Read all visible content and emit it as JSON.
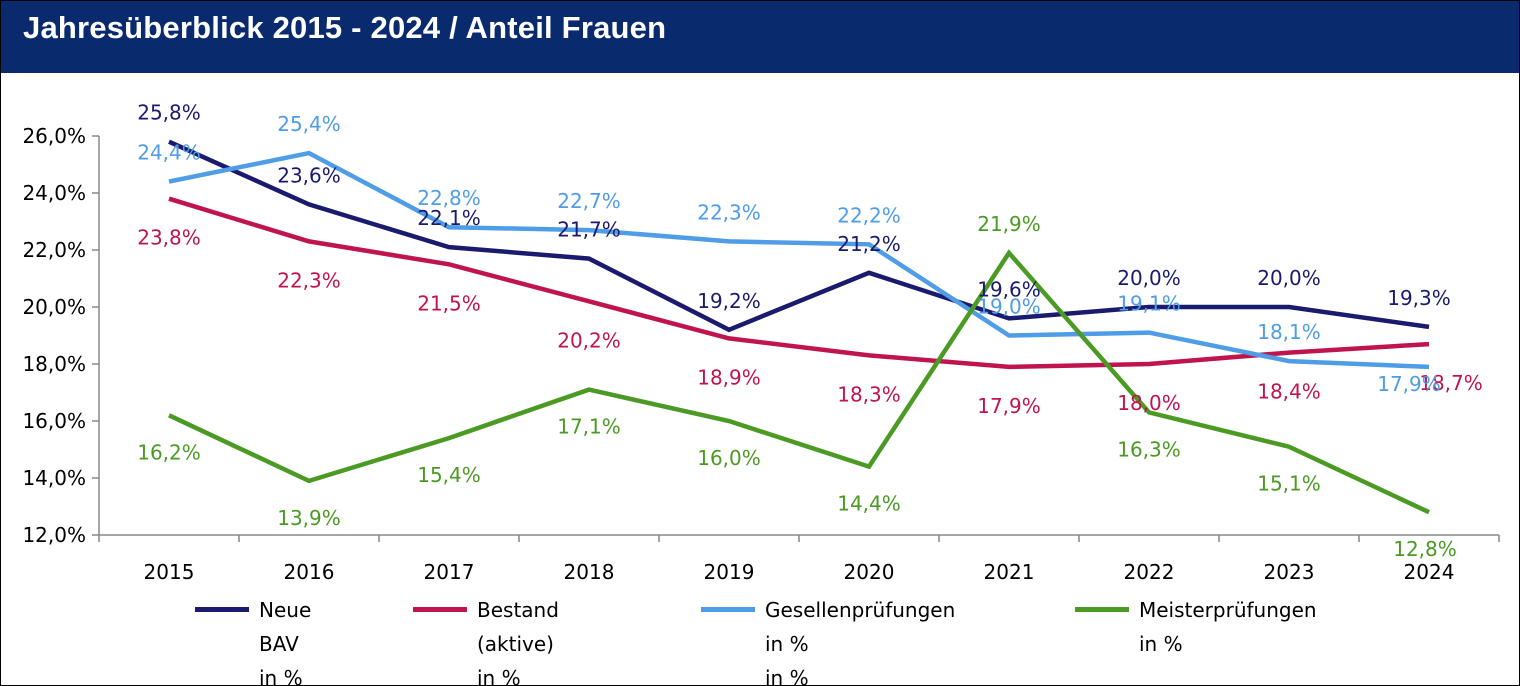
{
  "title": "Jahresüberblick 2015 - 2024 / Anteil Frauen",
  "chart_data": {
    "type": "line",
    "categories": [
      "2015",
      "2016",
      "2017",
      "2018",
      "2019",
      "2020",
      "2021",
      "2022",
      "2023",
      "2024"
    ],
    "ylim": [
      12,
      26
    ],
    "yticks": [
      12,
      14,
      16,
      18,
      20,
      22,
      24,
      26
    ],
    "ytick_labels": [
      "12,0%",
      "14,0%",
      "16,0%",
      "18,0%",
      "20,0%",
      "22,0%",
      "24,0%",
      "26,0%"
    ],
    "grid": false,
    "legend_position": "bottom",
    "series": [
      {
        "name": "Neue BAV in %",
        "legend_label": "Neue BAV\nin %",
        "color": "#1a1a6e",
        "values": [
          25.8,
          23.6,
          22.1,
          21.7,
          19.2,
          21.2,
          19.6,
          20.0,
          20.0,
          19.3
        ],
        "labels": [
          "25,8%",
          "23,6%",
          "22,1%",
          "21,7%",
          "19,2%",
          "21,2%",
          "19,6%",
          "20,0%",
          "20,0%",
          "19,3%"
        ]
      },
      {
        "name": "Bestand (aktive) in %",
        "legend_label": "Bestand (aktive)\nin %",
        "color": "#c0144e",
        "values": [
          23.8,
          22.3,
          21.5,
          20.2,
          18.9,
          18.3,
          17.9,
          18.0,
          18.4,
          18.7
        ],
        "labels": [
          "23,8%",
          "22,3%",
          "21,5%",
          "20,2%",
          "18,9%",
          "18,3%",
          "17,9%",
          "18,0%",
          "18,4%",
          "18,7%"
        ]
      },
      {
        "name": "Gesellenprüfungen in % in %",
        "legend_label": "Gesellenprüfungen in %\nin %",
        "color": "#4e9de6",
        "values": [
          24.4,
          25.4,
          22.8,
          22.7,
          22.3,
          22.2,
          19.0,
          19.1,
          18.1,
          17.9
        ],
        "labels": [
          "24,4%",
          "25,4%",
          "22,8%",
          "22,7%",
          "22,3%",
          "22,2%",
          "19,0%",
          "19,1%",
          "18,1%",
          "17,9%"
        ]
      },
      {
        "name": "Meisterprüfungen in %",
        "legend_label": "Meisterprüfungen\nin %",
        "color": "#4a9a23",
        "values": [
          16.2,
          13.9,
          15.4,
          17.1,
          16.0,
          14.4,
          21.9,
          16.3,
          15.1,
          12.8
        ],
        "labels": [
          "16,2%",
          "13,9%",
          "15,4%",
          "17,1%",
          "16,0%",
          "14,4%",
          "21,9%",
          "16,3%",
          "15,1%",
          "12,8%"
        ]
      }
    ]
  }
}
